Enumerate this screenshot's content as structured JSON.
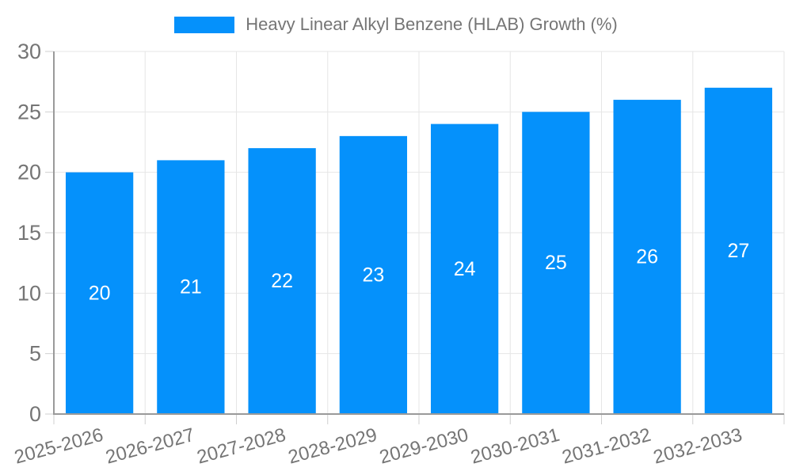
{
  "chart_data": {
    "type": "bar",
    "title": "Heavy Linear Alkyl Benzene (HLAB) Growth (%)",
    "series_name": "Heavy Linear Alkyl Benzene (HLAB) Growth (%)",
    "categories": [
      "2025-2026",
      "2026-2027",
      "2027-2028",
      "2028-2029",
      "2029-2030",
      "2030-2031",
      "2031-2032",
      "2032-2033"
    ],
    "values": [
      20,
      21,
      22,
      23,
      24,
      25,
      26,
      27
    ],
    "xlabel": "",
    "ylabel": "",
    "ylim": [
      0,
      30
    ],
    "yticks": [
      0,
      5,
      10,
      15,
      20,
      25,
      30
    ],
    "grid": "both",
    "legend_position": "top-center",
    "x_label_rotation_deg": -15,
    "colors": {
      "bar": "#0591FB",
      "value_label": "#FFFFFF",
      "axis_line": "#9A9A9A",
      "gridline": "#E6E6E6",
      "tick_mark": "#CFCFCF",
      "tick_text": "#757575",
      "legend_text": "#757575"
    }
  }
}
